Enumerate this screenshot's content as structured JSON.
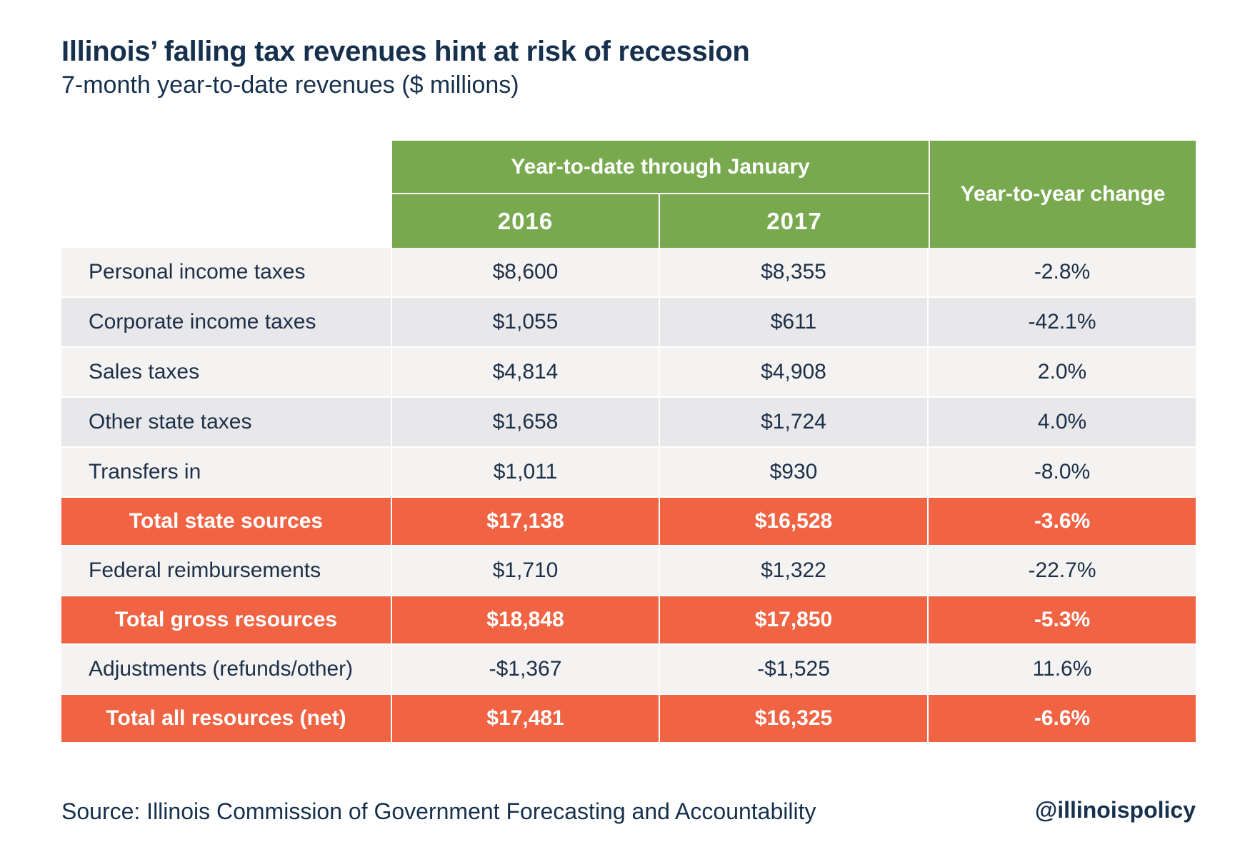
{
  "title": "Illinois’ falling tax revenues hint at risk of recession",
  "subtitle": "7-month year-to-date revenues ($ millions)",
  "colors": {
    "header_green": "#78a94f",
    "total_orange": "#f06343",
    "row_light": "#f5f3f1",
    "row_dark": "#e8e7ea",
    "text_navy": "#16304d"
  },
  "chart_data": {
    "type": "table",
    "title": "Illinois’ falling tax revenues hint at risk of recession",
    "subtitle": "7-month year-to-date revenues ($ millions)",
    "header_group": "Year-to-date through January",
    "columns": [
      "2016",
      "2017"
    ],
    "change_header": "Year-to-year change",
    "rows": [
      {
        "label": "Personal income taxes",
        "v2016": "$8,600",
        "v2017": "$8,355",
        "change": "-2.8%",
        "kind": "light"
      },
      {
        "label": "Corporate income taxes",
        "v2016": "$1,055",
        "v2017": "$611",
        "change": "-42.1%",
        "kind": "dark"
      },
      {
        "label": "Sales taxes",
        "v2016": "$4,814",
        "v2017": "$4,908",
        "change": "2.0%",
        "kind": "light"
      },
      {
        "label": "Other state taxes",
        "v2016": "$1,658",
        "v2017": "$1,724",
        "change": "4.0%",
        "kind": "dark"
      },
      {
        "label": "Transfers in",
        "v2016": "$1,011",
        "v2017": "$930",
        "change": "-8.0%",
        "kind": "light"
      },
      {
        "label": "Total state sources",
        "v2016": "$17,138",
        "v2017": "$16,528",
        "change": "-3.6%",
        "kind": "total"
      },
      {
        "label": "Federal reimbursements",
        "v2016": "$1,710",
        "v2017": "$1,322",
        "change": "-22.7%",
        "kind": "light"
      },
      {
        "label": "Total gross resources",
        "v2016": "$18,848",
        "v2017": "$17,850",
        "change": "-5.3%",
        "kind": "total"
      },
      {
        "label": "Adjustments (refunds/other)",
        "v2016": "-$1,367",
        "v2017": "-$1,525",
        "change": "11.6%",
        "kind": "light"
      },
      {
        "label": "Total all resources (net)",
        "v2016": "$17,481",
        "v2017": "$16,325",
        "change": "-6.6%",
        "kind": "total"
      }
    ]
  },
  "footer": {
    "source": "Source: Illinois Commission of Government Forecasting and Accountability",
    "handle": "@illinoispolicy"
  }
}
